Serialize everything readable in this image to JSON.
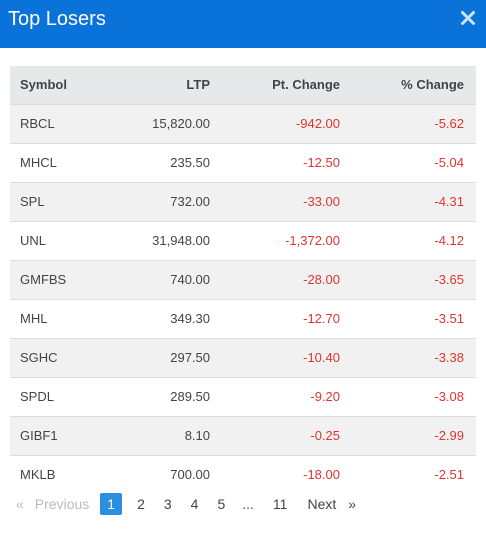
{
  "header": {
    "title": "Top Losers",
    "close_icon": "close-icon"
  },
  "table": {
    "columns": {
      "symbol": "Symbol",
      "ltp": "LTP",
      "pt_change": "Pt. Change",
      "pct_change": "% Change"
    },
    "rows": [
      {
        "symbol": "RBCL",
        "ltp": "15,820.00",
        "pt_change": "-942.00",
        "pct_change": "-5.62"
      },
      {
        "symbol": "MHCL",
        "ltp": "235.50",
        "pt_change": "-12.50",
        "pct_change": "-5.04"
      },
      {
        "symbol": "SPL",
        "ltp": "732.00",
        "pt_change": "-33.00",
        "pct_change": "-4.31"
      },
      {
        "symbol": "UNL",
        "ltp": "31,948.00",
        "pt_change": "-1,372.00",
        "pct_change": "-4.12"
      },
      {
        "symbol": "GMFBS",
        "ltp": "740.00",
        "pt_change": "-28.00",
        "pct_change": "-3.65"
      },
      {
        "symbol": "MHL",
        "ltp": "349.30",
        "pt_change": "-12.70",
        "pct_change": "-3.51"
      },
      {
        "symbol": "SGHC",
        "ltp": "297.50",
        "pt_change": "-10.40",
        "pct_change": "-3.38"
      },
      {
        "symbol": "SPDL",
        "ltp": "289.50",
        "pt_change": "-9.20",
        "pct_change": "-3.08"
      },
      {
        "symbol": "GIBF1",
        "ltp": "8.10",
        "pt_change": "-0.25",
        "pct_change": "-2.99"
      },
      {
        "symbol": "MKLB",
        "ltp": "700.00",
        "pt_change": "-18.00",
        "pct_change": "-2.51"
      }
    ]
  },
  "pager": {
    "first_glyph": "«",
    "previous": "Previous",
    "pages": [
      "1",
      "2",
      "3",
      "4",
      "5",
      "...",
      "11"
    ],
    "current": "1",
    "next": "Next",
    "last_glyph": "»"
  },
  "colors": {
    "header_bg": "#0a73d9",
    "negative": "#e0352f",
    "active_page": "#2a8fe0"
  }
}
